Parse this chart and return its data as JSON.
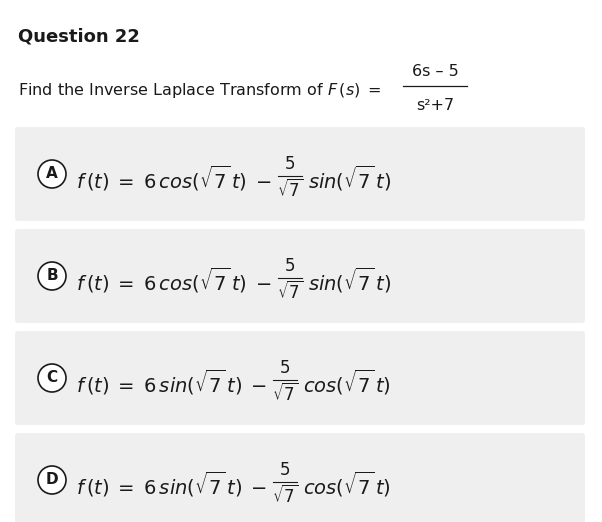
{
  "title": "Question 22",
  "question_text": "Find the Inverse Laplace Transform of ",
  "fraction_num": "6s – 5",
  "fraction_den": "s²+7",
  "options": [
    {
      "label": "A",
      "trig": "cos",
      "trig2": "sin"
    },
    {
      "label": "B",
      "trig": "cos",
      "trig2": "sin"
    },
    {
      "label": "C",
      "trig": "sin",
      "trig2": "cos"
    },
    {
      "label": "D",
      "trig": "sin",
      "trig2": "cos"
    }
  ],
  "bg_color": "#ffffff",
  "option_bg_color": "#efefef",
  "text_color": "#1a1a1a",
  "circle_color": "#1a1a1a",
  "title_fontsize": 13,
  "question_fontsize": 11.5,
  "option_fontsize": 14
}
